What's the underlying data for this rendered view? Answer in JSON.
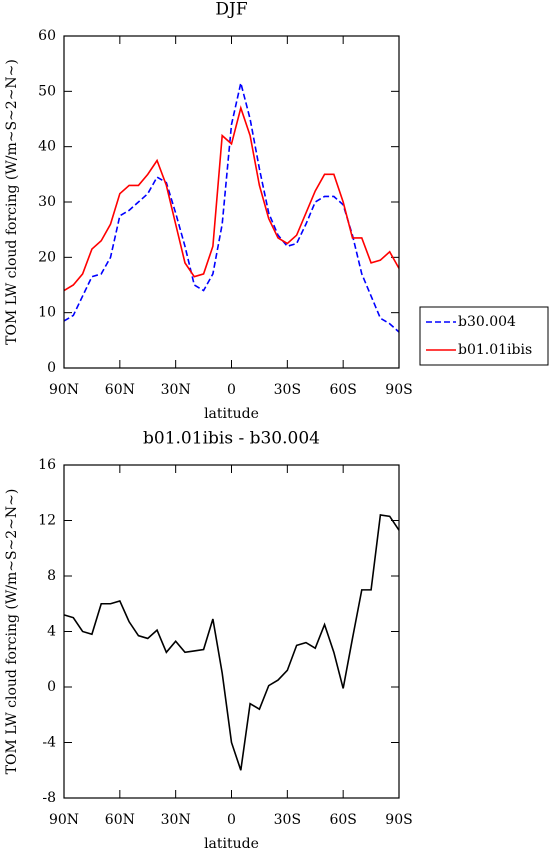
{
  "chart_data": [
    {
      "type": "line",
      "title": "DJF",
      "y_label": "TOM LW cloud forcing (W/m~S~2~N~)",
      "x_label": "latitude",
      "x": [
        90,
        85,
        80,
        75,
        70,
        65,
        60,
        55,
        50,
        45,
        40,
        35,
        30,
        25,
        20,
        15,
        10,
        5,
        0,
        -5,
        -10,
        -15,
        -20,
        -25,
        -30,
        -35,
        -40,
        -45,
        -50,
        -55,
        -60,
        -65,
        -70,
        -75,
        -80,
        -85,
        -90
      ],
      "series": [
        {
          "name": "b30.004",
          "color": "#0000ff",
          "style": "dashed",
          "values": [
            8.5,
            9.5,
            13,
            16.5,
            17,
            20,
            27.5,
            28.5,
            30,
            31.5,
            34.5,
            33.5,
            28,
            22,
            15,
            14,
            17,
            26,
            44,
            51.5,
            45,
            36,
            28,
            24,
            22,
            22.5,
            26,
            30,
            31,
            31,
            29.5,
            24,
            17,
            13,
            9,
            8,
            6.5
          ]
        },
        {
          "name": "b01.01ibis",
          "color": "#ff0000",
          "style": "solid",
          "values": [
            14,
            15,
            17,
            21.5,
            23,
            26,
            31.5,
            33,
            33,
            35,
            37.5,
            33,
            26,
            19,
            16.5,
            17,
            22,
            42,
            40.5,
            47,
            42,
            33,
            27,
            23.5,
            22.5,
            24,
            28,
            32,
            35,
            35,
            30,
            23.5,
            23.5,
            19,
            19.5,
            21,
            18
          ]
        }
      ],
      "xlim": [
        90,
        -90
      ],
      "xticks": [
        {
          "value": 90,
          "label": "90N"
        },
        {
          "value": 60,
          "label": "60N"
        },
        {
          "value": 30,
          "label": "30N"
        },
        0,
        {
          "value": -30,
          "label": "30S"
        },
        {
          "value": -60,
          "label": "60S"
        },
        {
          "value": -90,
          "label": "90S"
        }
      ],
      "ylim": [
        0,
        60
      ],
      "yticks": [
        0,
        10,
        20,
        30,
        40,
        50,
        60
      ],
      "legend": "right"
    },
    {
      "type": "line",
      "title": "b01.01ibis - b30.004",
      "y_label": "TOM LW cloud forcing (W/m~S~2~N~)",
      "x_label": "latitude",
      "x": [
        90,
        85,
        80,
        75,
        70,
        65,
        60,
        55,
        50,
        45,
        40,
        35,
        30,
        25,
        20,
        15,
        10,
        5,
        0,
        -5,
        -10,
        -15,
        -20,
        -25,
        -30,
        -35,
        -40,
        -45,
        -50,
        -55,
        -60,
        -65,
        -70,
        -75,
        -80,
        -85,
        -90
      ],
      "series": [
        {
          "color": "#000000",
          "style": "solid",
          "values": [
            5.2,
            5,
            4,
            3.8,
            6,
            6,
            6.2,
            4.7,
            3.7,
            3.5,
            4.1,
            2.5,
            3.3,
            2.5,
            2.6,
            2.7,
            4.9,
            1,
            -4,
            -6,
            -1.2,
            -1.6,
            0.1,
            0.5,
            1.2,
            3,
            3.2,
            2.8,
            4.5,
            2.5,
            -0.1,
            3.5,
            7,
            7,
            12.4,
            12.3,
            11.3
          ]
        }
      ],
      "xlim": [
        90,
        -90
      ],
      "xticks": [
        {
          "value": 90,
          "label": "90N"
        },
        {
          "value": 60,
          "label": "60N"
        },
        {
          "value": 30,
          "label": "30N"
        },
        0,
        {
          "value": -30,
          "label": "30S"
        },
        {
          "value": -60,
          "label": "60S"
        },
        {
          "value": -90,
          "label": "90S"
        }
      ],
      "ylim": [
        -8,
        16
      ],
      "yticks": [
        -8,
        -4,
        0,
        4,
        8,
        12,
        16
      ]
    }
  ]
}
